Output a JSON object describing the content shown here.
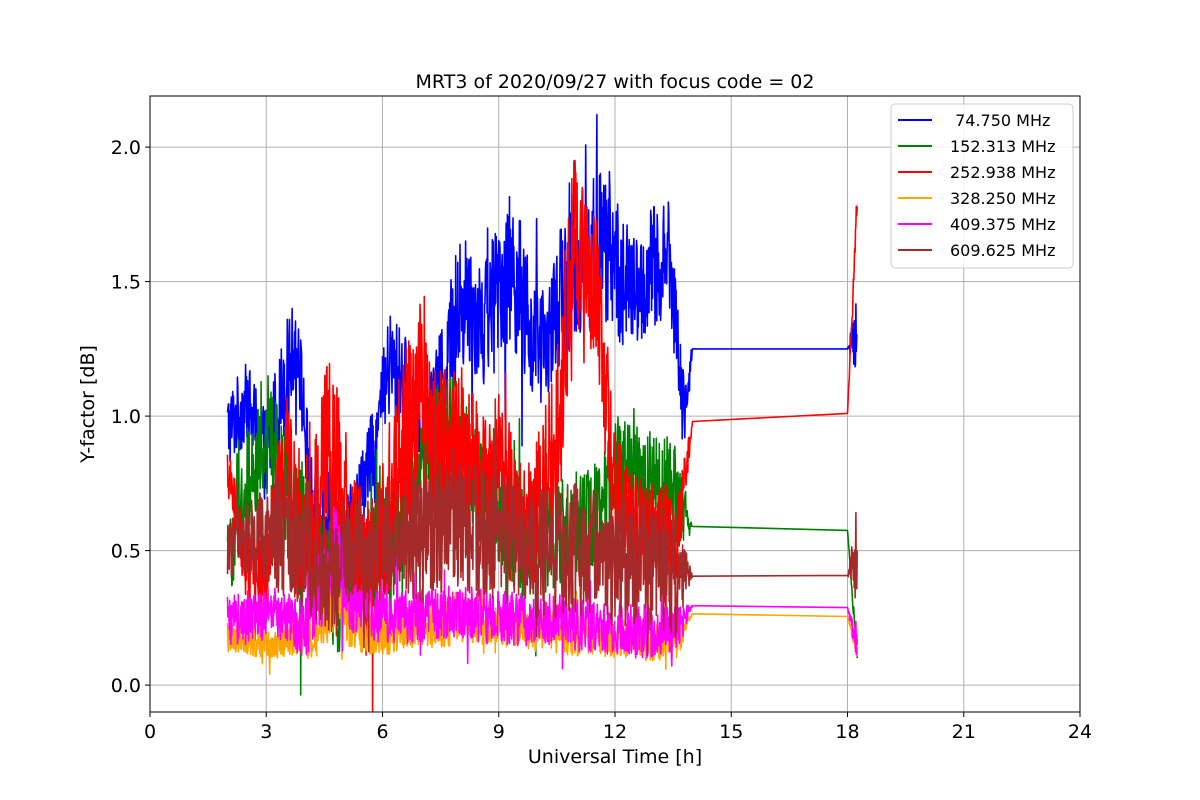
{
  "chart_data": {
    "type": "line",
    "title": "MRT3 of 2020/09/27 with focus code = 02",
    "xlabel": "Universal Time [h]",
    "ylabel": "Y-factor [dB]",
    "xlim": [
      0,
      24
    ],
    "ylim": [
      -0.1,
      2.19
    ],
    "xticks": [
      0,
      3,
      6,
      9,
      12,
      15,
      18,
      21,
      24
    ],
    "xtick_labels": [
      "0",
      "3",
      "6",
      "9",
      "12",
      "15",
      "18",
      "21",
      "24"
    ],
    "yticks": [
      0.0,
      0.5,
      1.0,
      1.5,
      2.0
    ],
    "ytick_labels": [
      "0.0",
      "0.5",
      "1.0",
      "1.5",
      "2.0"
    ],
    "grid": true,
    "legend_position": "top-right",
    "series": [
      {
        "name": " 74.750 MHz",
        "color": "#0000ff",
        "x": [
          2.0,
          2.5,
          3.0,
          3.5,
          3.8,
          4.2,
          4.6,
          5.0,
          5.4,
          5.8,
          6.2,
          6.6,
          7.0,
          7.4,
          7.8,
          8.2,
          8.6,
          9.0,
          9.4,
          9.8,
          10.2,
          10.6,
          11.0,
          11.4,
          11.8,
          12.2,
          12.6,
          13.0,
          13.4,
          13.8,
          14.0,
          18.0,
          18.25
        ],
        "y": [
          0.95,
          1.05,
          0.85,
          1.15,
          1.3,
          0.6,
          0.65,
          0.55,
          0.7,
          0.9,
          1.2,
          1.1,
          0.95,
          1.1,
          1.3,
          1.45,
          1.35,
          1.5,
          1.55,
          1.3,
          1.25,
          1.45,
          1.55,
          1.6,
          1.65,
          1.5,
          1.45,
          1.55,
          1.6,
          1.0,
          1.25,
          1.25,
          1.3
        ],
        "band": [
          0.15,
          0.15,
          0.18,
          0.2,
          0.15,
          0.2,
          0.2,
          0.15,
          0.15,
          0.15,
          0.2,
          0.2,
          0.15,
          0.15,
          0.25,
          0.25,
          0.25,
          0.25,
          0.3,
          0.25,
          0.2,
          0.25,
          0.3,
          0.3,
          0.3,
          0.25,
          0.2,
          0.25,
          0.2,
          0.15,
          0.0,
          0.0,
          0.15
        ]
      },
      {
        "name": "152.313 MHz",
        "color": "#008000",
        "x": [
          2.0,
          2.5,
          3.0,
          3.5,
          4.0,
          4.4,
          4.8,
          5.2,
          5.6,
          6.0,
          6.4,
          6.8,
          7.2,
          7.6,
          8.0,
          8.4,
          8.8,
          9.2,
          9.6,
          10.0,
          10.4,
          10.8,
          11.2,
          11.6,
          12.0,
          12.4,
          12.8,
          13.2,
          13.6,
          14.0,
          18.0,
          18.25
        ],
        "y": [
          0.45,
          0.75,
          0.95,
          0.7,
          0.55,
          0.45,
          0.3,
          0.35,
          0.45,
          0.5,
          0.6,
          0.75,
          0.85,
          0.95,
          0.9,
          0.75,
          0.7,
          0.6,
          0.55,
          0.5,
          0.55,
          0.6,
          0.6,
          0.65,
          0.8,
          0.85,
          0.75,
          0.75,
          0.7,
          0.59,
          0.575,
          0.1
        ],
        "band": [
          0.15,
          0.2,
          0.25,
          0.25,
          0.25,
          0.2,
          0.2,
          0.15,
          0.2,
          0.2,
          0.25,
          0.2,
          0.2,
          0.25,
          0.25,
          0.2,
          0.2,
          0.2,
          0.2,
          0.2,
          0.2,
          0.2,
          0.2,
          0.2,
          0.2,
          0.2,
          0.2,
          0.2,
          0.2,
          0.0,
          0.0,
          0.05
        ]
      },
      {
        "name": "252.938 MHz",
        "color": "#ff0000",
        "x": [
          2.0,
          2.5,
          3.0,
          3.5,
          3.8,
          4.2,
          4.6,
          5.0,
          5.4,
          5.8,
          6.2,
          6.6,
          7.0,
          7.4,
          7.8,
          8.2,
          8.6,
          9.0,
          9.4,
          9.8,
          10.2,
          10.6,
          10.8,
          11.0,
          11.2,
          11.4,
          11.6,
          12.0,
          12.4,
          12.8,
          13.2,
          13.6,
          14.0,
          18.0,
          18.25
        ],
        "y": [
          0.8,
          0.45,
          0.4,
          0.85,
          0.6,
          0.55,
          0.9,
          0.7,
          0.5,
          0.45,
          0.7,
          0.9,
          1.1,
          0.8,
          0.95,
          0.85,
          0.75,
          0.8,
          0.7,
          0.6,
          0.75,
          1.05,
          1.45,
          1.7,
          1.5,
          1.55,
          1.35,
          0.75,
          0.6,
          0.55,
          0.55,
          0.55,
          0.98,
          1.01,
          1.78
        ],
        "band": [
          0.08,
          0.15,
          0.15,
          0.25,
          0.3,
          0.3,
          0.35,
          0.3,
          0.25,
          0.25,
          0.3,
          0.35,
          0.35,
          0.35,
          0.3,
          0.3,
          0.25,
          0.25,
          0.25,
          0.25,
          0.3,
          0.35,
          0.35,
          0.3,
          0.35,
          0.3,
          0.3,
          0.25,
          0.2,
          0.2,
          0.2,
          0.2,
          0.0,
          0.0,
          0.08
        ]
      },
      {
        "name": "328.250 MHz",
        "color": "#ffa500",
        "x": [
          2.0,
          2.5,
          3.0,
          3.5,
          4.0,
          4.4,
          4.8,
          5.2,
          5.6,
          6.0,
          6.4,
          6.8,
          7.2,
          7.6,
          8.0,
          8.4,
          8.8,
          9.2,
          9.6,
          10.0,
          10.4,
          10.8,
          11.2,
          11.6,
          12.0,
          12.4,
          12.8,
          13.2,
          13.6,
          14.0,
          18.0,
          18.25
        ],
        "y": [
          0.18,
          0.17,
          0.16,
          0.17,
          0.18,
          0.2,
          0.35,
          0.22,
          0.2,
          0.18,
          0.2,
          0.22,
          0.22,
          0.24,
          0.25,
          0.24,
          0.22,
          0.22,
          0.2,
          0.2,
          0.2,
          0.19,
          0.19,
          0.18,
          0.17,
          0.17,
          0.16,
          0.16,
          0.16,
          0.265,
          0.255,
          0.12
        ],
        "band": [
          0.06,
          0.06,
          0.06,
          0.07,
          0.08,
          0.1,
          0.15,
          0.1,
          0.08,
          0.08,
          0.08,
          0.08,
          0.08,
          0.1,
          0.1,
          0.08,
          0.08,
          0.08,
          0.08,
          0.08,
          0.08,
          0.08,
          0.08,
          0.07,
          0.07,
          0.07,
          0.07,
          0.07,
          0.07,
          0.0,
          0.0,
          0.05
        ]
      },
      {
        "name": "409.375 MHz",
        "color": "#ff00ff",
        "x": [
          2.0,
          2.5,
          3.0,
          3.5,
          4.0,
          4.4,
          4.8,
          5.2,
          5.6,
          6.0,
          6.4,
          6.8,
          7.2,
          7.6,
          8.0,
          8.4,
          8.8,
          9.2,
          9.6,
          10.0,
          10.4,
          10.8,
          11.2,
          11.6,
          12.0,
          12.4,
          12.8,
          13.2,
          13.6,
          14.0,
          18.0,
          18.25
        ],
        "y": [
          0.24,
          0.25,
          0.27,
          0.25,
          0.22,
          0.35,
          0.55,
          0.3,
          0.27,
          0.25,
          0.26,
          0.25,
          0.26,
          0.27,
          0.27,
          0.26,
          0.25,
          0.25,
          0.24,
          0.24,
          0.24,
          0.23,
          0.22,
          0.22,
          0.21,
          0.2,
          0.2,
          0.2,
          0.2,
          0.295,
          0.288,
          0.15
        ],
        "band": [
          0.09,
          0.1,
          0.1,
          0.1,
          0.12,
          0.15,
          0.18,
          0.12,
          0.1,
          0.1,
          0.1,
          0.1,
          0.1,
          0.1,
          0.1,
          0.1,
          0.1,
          0.1,
          0.1,
          0.1,
          0.1,
          0.1,
          0.1,
          0.1,
          0.1,
          0.1,
          0.1,
          0.1,
          0.1,
          0.0,
          0.0,
          0.08
        ]
      },
      {
        "name": "609.625 MHz",
        "color": "#a52a2a",
        "x": [
          2.0,
          2.5,
          3.0,
          3.5,
          4.0,
          4.4,
          4.8,
          5.2,
          5.6,
          6.0,
          6.4,
          6.8,
          7.2,
          7.6,
          8.0,
          8.4,
          8.8,
          9.2,
          9.6,
          10.0,
          10.4,
          10.8,
          11.2,
          11.6,
          12.0,
          12.4,
          12.8,
          13.2,
          13.6,
          14.0,
          18.0,
          18.25
        ],
        "y": [
          0.5,
          0.55,
          0.57,
          0.58,
          0.52,
          0.45,
          0.42,
          0.5,
          0.52,
          0.53,
          0.55,
          0.55,
          0.55,
          0.58,
          0.6,
          0.58,
          0.56,
          0.55,
          0.52,
          0.5,
          0.5,
          0.5,
          0.5,
          0.48,
          0.47,
          0.46,
          0.45,
          0.44,
          0.43,
          0.405,
          0.408,
          0.5
        ],
        "band": [
          0.1,
          0.15,
          0.2,
          0.25,
          0.25,
          0.25,
          0.25,
          0.2,
          0.2,
          0.2,
          0.2,
          0.25,
          0.25,
          0.25,
          0.25,
          0.25,
          0.25,
          0.25,
          0.25,
          0.25,
          0.25,
          0.25,
          0.25,
          0.25,
          0.25,
          0.25,
          0.25,
          0.25,
          0.25,
          0.0,
          0.0,
          0.2
        ]
      }
    ]
  }
}
